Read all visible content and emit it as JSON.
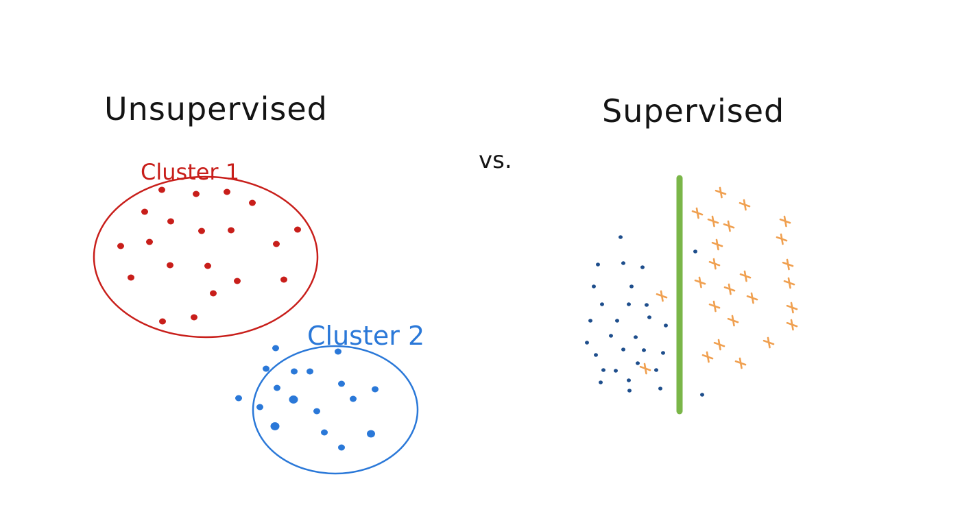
{
  "left_title": "Unsupervised",
  "vs_label": "vs.",
  "right_title": "Supervised",
  "cluster1": {
    "label": "Cluster 1",
    "color": "#c81e1a"
  },
  "cluster2": {
    "label": "Cluster 2",
    "color": "#2a78d8"
  },
  "supervised": {
    "class_a_color": "#1e4e8c",
    "class_b_color": "#f0a050",
    "boundary_color": "#7ab648"
  }
}
